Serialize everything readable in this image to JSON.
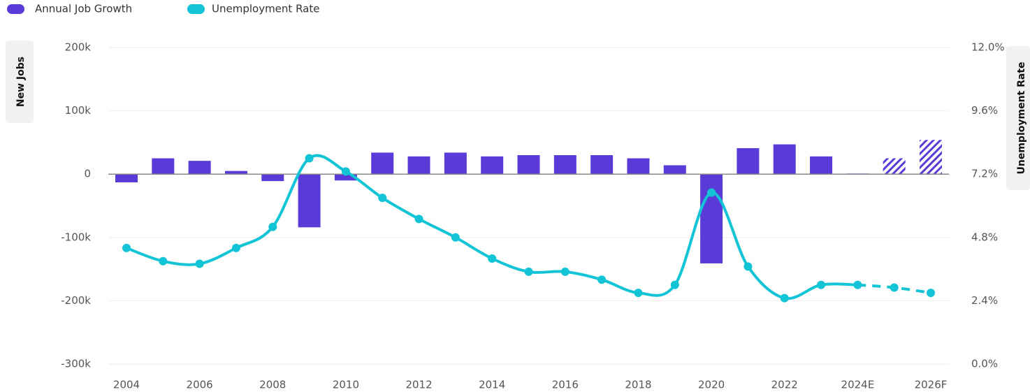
{
  "chart_data": {
    "type": "bar-line",
    "categories": [
      "2004",
      null,
      "2006",
      null,
      "2008",
      null,
      "2010",
      null,
      "2012",
      null,
      "2014",
      null,
      "2016",
      null,
      "2018",
      null,
      "2020",
      null,
      "2022",
      null,
      "2024E",
      null,
      "2026F"
    ],
    "forecast_from": "2024E",
    "series": [
      {
        "name": "Annual Job Growth",
        "type": "bar",
        "color": "#5b3bd8",
        "values": [
          -13000,
          25000,
          21000,
          5000,
          -11000,
          -84000,
          -10000,
          34000,
          28000,
          34000,
          28000,
          30000,
          30000,
          30000,
          25000,
          14000,
          -141000,
          41000,
          47000,
          28000,
          1000,
          25000,
          54000
        ]
      },
      {
        "name": "Unemployment Rate",
        "type": "line",
        "axis": "y2",
        "color": "#12c4d6",
        "values": [
          4.4,
          3.9,
          3.8,
          4.4,
          5.2,
          7.8,
          7.3,
          6.3,
          5.5,
          4.8,
          4.0,
          3.5,
          3.5,
          3.2,
          2.7,
          3.0,
          6.5,
          3.7,
          2.5,
          3.0,
          3.0,
          2.9,
          2.7
        ]
      }
    ],
    "ylabel": "New Jobs",
    "y2label": "Unemployment Rate",
    "ylim": [
      -300000,
      200000
    ],
    "yticks": [
      {
        "value": -300000,
        "label": "-300k"
      },
      {
        "value": -200000,
        "label": "-200k"
      },
      {
        "value": -100000,
        "label": "-100k"
      },
      0,
      {
        "value": 100000,
        "label": "100k"
      },
      {
        "value": 200000,
        "label": "200k"
      }
    ],
    "y2lim": [
      0,
      12
    ],
    "y2ticks": [
      {
        "value": 0,
        "label": "0.0%"
      },
      {
        "value": 2.4,
        "label": "2.4%"
      },
      {
        "value": 4.8,
        "label": "4.8%"
      },
      {
        "value": 7.2,
        "label": "7.2%"
      },
      {
        "value": 9.6,
        "label": "9.6%"
      },
      {
        "value": 12,
        "label": "12.0%"
      }
    ],
    "grid": true,
    "legend": "top-left"
  }
}
